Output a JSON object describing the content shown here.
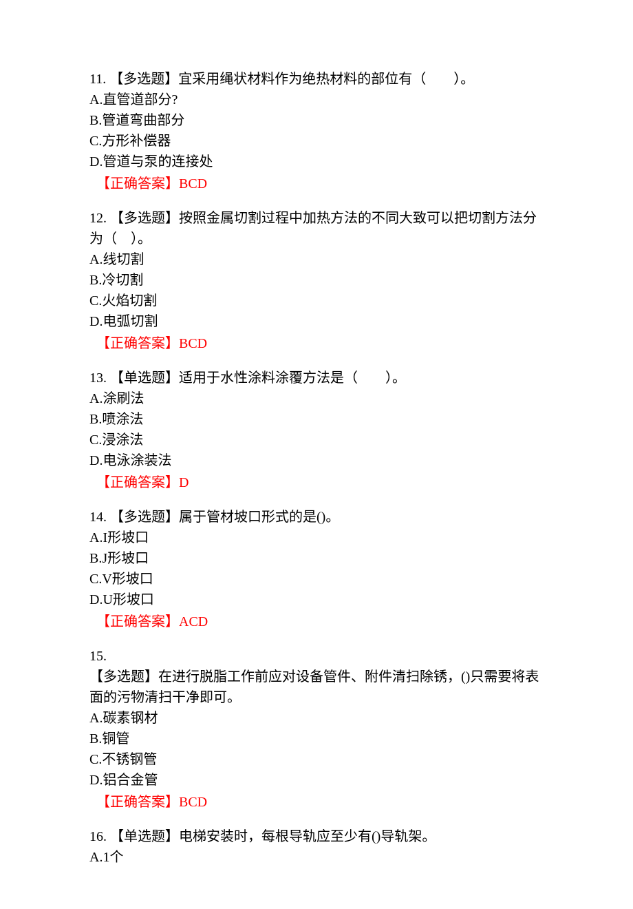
{
  "colors": {
    "text": "#000000",
    "answer": "#ff0000",
    "background": "#ffffff"
  },
  "typography": {
    "fontFamily": "SimSun",
    "fontSize": 20,
    "lineHeight": 1.5
  },
  "questions": [
    {
      "number": "11.",
      "type": "【多选题】",
      "stem": "宜采用绳状材料作为绝热材料的部位有（　　）。",
      "options": {
        "A": "A.直管道部分?",
        "B": "B.管道弯曲部分",
        "C": "C.方形补偿器",
        "D": "D.管道与泵的连接处"
      },
      "answerLabel": "【正确答案】",
      "answer": "BCD"
    },
    {
      "number": "12.",
      "type": "【多选题】",
      "stem": "按照金属切割过程中加热方法的不同大致可以把切割方法分为（　）。",
      "options": {
        "A": "A.线切割",
        "B": "B.冷切割",
        "C": "C.火焰切割",
        "D": "D.电弧切割"
      },
      "answerLabel": "【正确答案】",
      "answer": "BCD"
    },
    {
      "number": "13.",
      "type": "【单选题】",
      "stem": "适用于水性涂料涂覆方法是（　　）。",
      "options": {
        "A": "A.涂刷法",
        "B": "B.喷涂法",
        "C": "C.浸涂法",
        "D": "D.电泳涂装法"
      },
      "answerLabel": "【正确答案】",
      "answer": "D"
    },
    {
      "number": "14.",
      "type": "【多选题】",
      "stem": "属于管材坡口形式的是()。",
      "options": {
        "A": "A.I形坡口",
        "B": "B.J形坡口",
        "C": "C.V形坡口",
        "D": "D.U形坡口"
      },
      "answerLabel": "【正确答案】",
      "answer": "ACD"
    },
    {
      "number": "15.",
      "type": "【多选题】",
      "stem": "在进行脱脂工作前应对设备管件、附件清扫除锈，()只需要将表面的污物清扫干净即可。",
      "options": {
        "A": "A.碳素钢材",
        "B": "B.铜管",
        "C": "C.不锈钢管",
        "D": "D.铝合金管"
      },
      "answerLabel": "【正确答案】",
      "answer": "BCD",
      "numberAlone": true
    },
    {
      "number": "16.",
      "type": "【单选题】",
      "stem": "电梯安装时，每根导轨应至少有()导轨架。",
      "options": {
        "A": "A.1个"
      },
      "partial": true
    }
  ]
}
